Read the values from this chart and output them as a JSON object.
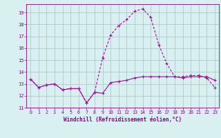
{
  "xlabel": "Windchill (Refroidissement éolien,°C)",
  "x": [
    0,
    1,
    2,
    3,
    4,
    5,
    6,
    7,
    8,
    9,
    10,
    11,
    12,
    13,
    14,
    15,
    16,
    17,
    18,
    19,
    20,
    21,
    22,
    23
  ],
  "line1": [
    13.4,
    12.7,
    12.9,
    13.0,
    12.5,
    12.6,
    12.6,
    11.4,
    12.3,
    12.2,
    13.1,
    13.2,
    13.3,
    13.5,
    13.6,
    13.6,
    13.6,
    13.6,
    13.6,
    13.5,
    13.6,
    13.6,
    13.6,
    13.3
  ],
  "line2": [
    13.4,
    12.7,
    12.9,
    13.0,
    12.5,
    12.6,
    12.6,
    11.4,
    12.3,
    15.2,
    17.1,
    17.9,
    18.4,
    19.1,
    19.3,
    18.6,
    16.3,
    14.7,
    13.6,
    13.6,
    13.7,
    13.7,
    13.5,
    12.7
  ],
  "line_color": "#aa00aa",
  "bg_color": "#d8f0f0",
  "grid_color": "#b0c8c8",
  "text_color": "#880088",
  "ylim": [
    11,
    19.7
  ],
  "xlim": [
    -0.5,
    23.5
  ],
  "yticks": [
    11,
    12,
    13,
    14,
    15,
    16,
    17,
    18,
    19
  ],
  "xticks": [
    0,
    1,
    2,
    3,
    4,
    5,
    6,
    7,
    8,
    9,
    10,
    11,
    12,
    13,
    14,
    15,
    16,
    17,
    18,
    19,
    20,
    21,
    22,
    23
  ]
}
